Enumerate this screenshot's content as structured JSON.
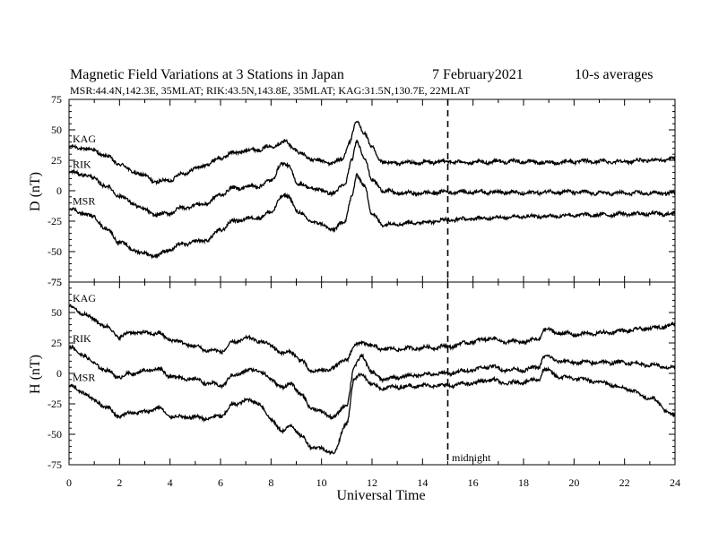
{
  "figure": {
    "title": "Magnetic Field Variations at 3 Stations in Japan",
    "date": "7   February2021",
    "averaging": "10-s averages",
    "subtitle": "MSR:44.4N,142.3E, 35MLAT;  RIK:43.5N,143.8E, 35MLAT;  KAG:31.5N,130.7E, 22MLAT",
    "xlabel": "Universal Time",
    "marker_label": "midnight"
  },
  "chart_data": [
    {
      "type": "line",
      "ylabel": "D (nT)",
      "xlim": [
        0,
        24
      ],
      "ylim": [
        -75,
        75
      ],
      "yticks": [
        -75,
        -50,
        -25,
        0,
        25,
        50,
        75
      ],
      "xticks": [
        0,
        2,
        4,
        6,
        8,
        10,
        12,
        14,
        16,
        18,
        20,
        22,
        24
      ],
      "vline_x": 15,
      "series": [
        {
          "name": "KAG",
          "x": [
            0,
            0.5,
            1,
            1.5,
            2,
            2.5,
            3,
            3.5,
            4,
            4.5,
            5,
            5.5,
            6,
            6.5,
            7,
            7.5,
            8,
            8.3,
            8.6,
            8.9,
            9.2,
            9.6,
            10,
            10.4,
            10.8,
            11.1,
            11.4,
            11.7,
            12,
            12.3,
            12.7,
            13,
            14,
            15,
            16,
            17,
            18,
            19,
            20,
            21,
            22,
            23,
            24
          ],
          "y": [
            36,
            35,
            33,
            28,
            22,
            16,
            12,
            7,
            9,
            14,
            18,
            22,
            27,
            31,
            33,
            34,
            36,
            39,
            40,
            35,
            30,
            26,
            24,
            23,
            25,
            40,
            56,
            48,
            35,
            25,
            22,
            23,
            23,
            24,
            23,
            24,
            24,
            23,
            24,
            24,
            24,
            25,
            26
          ]
        },
        {
          "name": "RIK",
          "x": [
            0,
            0.5,
            1,
            1.5,
            2,
            2.5,
            3,
            3.5,
            4,
            4.5,
            5,
            5.5,
            6,
            6.5,
            7,
            7.5,
            8,
            8.4,
            8.7,
            9.1,
            9.5,
            10,
            10.5,
            10.9,
            11.2,
            11.4,
            11.7,
            12,
            12.5,
            13,
            14,
            15,
            16,
            17,
            18,
            19,
            20,
            21,
            22,
            23,
            24
          ],
          "y": [
            15,
            14,
            10,
            3,
            -4,
            -10,
            -16,
            -20,
            -18,
            -14,
            -12,
            -10,
            -3,
            2,
            3,
            4,
            8,
            22,
            20,
            5,
            3,
            0,
            -2,
            5,
            25,
            40,
            28,
            8,
            0,
            -2,
            -2,
            -1,
            -1,
            -1,
            -2,
            -1,
            -1,
            -2,
            -2,
            -2,
            -2
          ]
        },
        {
          "name": "MSR",
          "x": [
            0,
            0.5,
            1,
            1.5,
            2,
            2.5,
            3,
            3.5,
            4,
            4.5,
            5,
            5.5,
            6,
            6.5,
            7,
            7.5,
            8,
            8.4,
            8.7,
            9.1,
            9.5,
            10,
            10.5,
            10.9,
            11.2,
            11.4,
            11.7,
            12,
            12.5,
            13,
            14,
            15,
            16,
            17,
            18,
            19,
            20,
            21,
            22,
            23,
            24
          ],
          "y": [
            -15,
            -18,
            -22,
            -32,
            -42,
            -48,
            -52,
            -53,
            -48,
            -44,
            -42,
            -40,
            -32,
            -25,
            -23,
            -22,
            -18,
            -5,
            -5,
            -18,
            -24,
            -28,
            -32,
            -25,
            -5,
            12,
            5,
            -20,
            -28,
            -27,
            -26,
            -24,
            -23,
            -22,
            -21,
            -21,
            -20,
            -20,
            -19,
            -19,
            -19
          ]
        }
      ]
    },
    {
      "type": "line",
      "ylabel": "H (nT)",
      "xlim": [
        0,
        24
      ],
      "ylim": [
        -75,
        75
      ],
      "yticks": [
        -75,
        -50,
        -25,
        0,
        25,
        50,
        75
      ],
      "xticks": [
        0,
        2,
        4,
        6,
        8,
        10,
        12,
        14,
        16,
        18,
        20,
        22,
        24
      ],
      "vline_x": 15,
      "series": [
        {
          "name": "KAG",
          "x": [
            0,
            0.5,
            1,
            1.5,
            2,
            2.5,
            3,
            3.5,
            4,
            4.5,
            5,
            5.5,
            6,
            6.5,
            7,
            7.5,
            8,
            8.5,
            8.8,
            9.2,
            9.6,
            10,
            10.5,
            11,
            11.3,
            11.6,
            12,
            12.5,
            13,
            14,
            15,
            16,
            16.7,
            17.2,
            18,
            18.6,
            18.8,
            19.5,
            20,
            21,
            22,
            23,
            24
          ],
          "y": [
            55,
            50,
            44,
            38,
            30,
            34,
            33,
            33,
            28,
            25,
            22,
            19,
            18,
            25,
            29,
            27,
            23,
            16,
            18,
            10,
            2,
            2,
            5,
            12,
            22,
            26,
            22,
            20,
            20,
            21,
            22,
            26,
            29,
            26,
            26,
            28,
            36,
            33,
            32,
            33,
            35,
            37,
            40
          ]
        },
        {
          "name": "RIK",
          "x": [
            0,
            0.5,
            1,
            1.5,
            2,
            2.5,
            3,
            3.5,
            4,
            4.5,
            5,
            5.5,
            6,
            6.5,
            7,
            7.5,
            8,
            8.5,
            8.8,
            9.2,
            9.6,
            10,
            10.5,
            11,
            11.3,
            11.6,
            12,
            12.5,
            13,
            14,
            15,
            16,
            16.7,
            17.2,
            18,
            18.6,
            18.8,
            19.5,
            20,
            21,
            22,
            23,
            24
          ],
          "y": [
            22,
            16,
            8,
            2,
            -3,
            0,
            2,
            4,
            -2,
            -4,
            -5,
            -8,
            -10,
            -2,
            2,
            3,
            -5,
            -12,
            -8,
            -18,
            -28,
            -32,
            -36,
            -25,
            5,
            15,
            0,
            -5,
            -3,
            -1,
            0,
            3,
            6,
            3,
            3,
            5,
            14,
            10,
            9,
            9,
            9,
            7,
            4
          ]
        },
        {
          "name": "MSR",
          "x": [
            0,
            0.5,
            1,
            1.5,
            2,
            2.5,
            3,
            3.5,
            4,
            4.5,
            5,
            5.5,
            6,
            6.5,
            7,
            7.5,
            8,
            8.5,
            8.8,
            9.2,
            9.6,
            10,
            10.5,
            11,
            11.3,
            11.6,
            12,
            12.5,
            13,
            14,
            15,
            16,
            16.7,
            17.2,
            18,
            18.6,
            18.8,
            19.5,
            20,
            21,
            22,
            23,
            24
          ],
          "y": [
            -10,
            -15,
            -22,
            -28,
            -35,
            -32,
            -32,
            -28,
            -35,
            -36,
            -36,
            -37,
            -35,
            -26,
            -22,
            -24,
            -38,
            -48,
            -42,
            -52,
            -60,
            -62,
            -65,
            -40,
            -5,
            0,
            -10,
            -12,
            -11,
            -10,
            -10,
            -8,
            -5,
            -8,
            -7,
            -5,
            3,
            -3,
            -4,
            -7,
            -12,
            -20,
            -35
          ]
        }
      ]
    }
  ]
}
